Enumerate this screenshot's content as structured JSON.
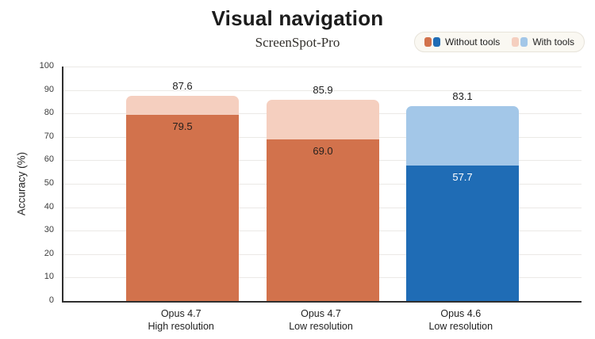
{
  "header": {
    "title": "Visual navigation",
    "subtitle": "ScreenSpot-Pro"
  },
  "legend": {
    "items": [
      {
        "label": "Without tools",
        "swatches": [
          "#D2724C",
          "#1F6CB5"
        ]
      },
      {
        "label": "With tools",
        "swatches": [
          "#F5CFBF",
          "#A3C7E8"
        ]
      }
    ]
  },
  "chart_data": {
    "type": "bar",
    "title": "Visual navigation",
    "subtitle": "ScreenSpot-Pro",
    "ylabel": "Accuracy (%)",
    "xlabel": "",
    "ylim": [
      0,
      100
    ],
    "yticks": [
      0,
      10,
      20,
      30,
      40,
      50,
      60,
      70,
      80,
      90,
      100
    ],
    "grid": true,
    "legend_position": "top-right",
    "categories": [
      {
        "line1": "Opus 4.7",
        "line2": "High resolution"
      },
      {
        "line1": "Opus 4.7",
        "line2": "Low resolution"
      },
      {
        "line1": "Opus 4.6",
        "line2": "Low resolution"
      }
    ],
    "series": [
      {
        "name": "With tools",
        "values": [
          87.6,
          85.9,
          83.1
        ],
        "display": [
          "87.6",
          "85.9",
          "83.1"
        ],
        "bar_colors": [
          "#F5CFBF",
          "#F5CFBF",
          "#A3C7E8"
        ]
      },
      {
        "name": "Without tools",
        "values": [
          79.5,
          69.0,
          57.7
        ],
        "display": [
          "79.5",
          "69.0",
          "57.7"
        ],
        "bar_colors": [
          "#D2724C",
          "#D2724C",
          "#1F6CB5"
        ],
        "value_label_colors": [
          "#26211E",
          "#26211E",
          "#FFFFFF"
        ]
      }
    ]
  },
  "colors": {
    "background": "#FFFFFF",
    "axis": "#2F2F2F",
    "gridline": "#EBE9E6",
    "legend_bg": "#FAF8F2",
    "legend_border": "#E7E3DA",
    "text": "#1A1A1A"
  }
}
